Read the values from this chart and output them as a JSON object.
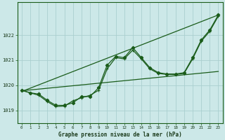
{
  "title": "Graphe pression niveau de la mer (hPa)",
  "bg_color": "#cce8e8",
  "grid_color": "#aacfcf",
  "line_color": "#1a5c1a",
  "xlim": [
    -0.5,
    23.5
  ],
  "ylim": [
    1018.5,
    1023.3
  ],
  "yticks": [
    1019,
    1020,
    1021,
    1022
  ],
  "xticks": [
    0,
    1,
    2,
    3,
    4,
    5,
    6,
    7,
    8,
    9,
    10,
    11,
    12,
    13,
    14,
    15,
    16,
    17,
    18,
    19,
    20,
    21,
    22,
    23
  ],
  "series1": [
    1019.8,
    1019.7,
    1019.6,
    1019.35,
    1019.15,
    1019.17,
    1019.38,
    1019.5,
    1019.6,
    1019.8,
    1020.65,
    1021.1,
    1021.05,
    1021.4,
    1021.05,
    1020.65,
    1020.47,
    1020.43,
    1020.43,
    1020.47,
    1021.05,
    1021.75,
    1022.15,
    1022.75
  ],
  "series2": [
    1019.8,
    1019.7,
    1019.65,
    1019.4,
    1019.2,
    1019.2,
    1019.3,
    1019.55,
    1019.55,
    1019.9,
    1020.8,
    1021.15,
    1021.1,
    1021.5,
    1021.1,
    1020.7,
    1020.5,
    1020.45,
    1020.45,
    1020.5,
    1021.1,
    1021.8,
    1022.2,
    1022.8
  ],
  "trend1_x": [
    0,
    23
  ],
  "trend1_y": [
    1019.75,
    1022.8
  ],
  "trend2_x": [
    0,
    23
  ],
  "trend2_y": [
    1019.78,
    1020.55
  ]
}
